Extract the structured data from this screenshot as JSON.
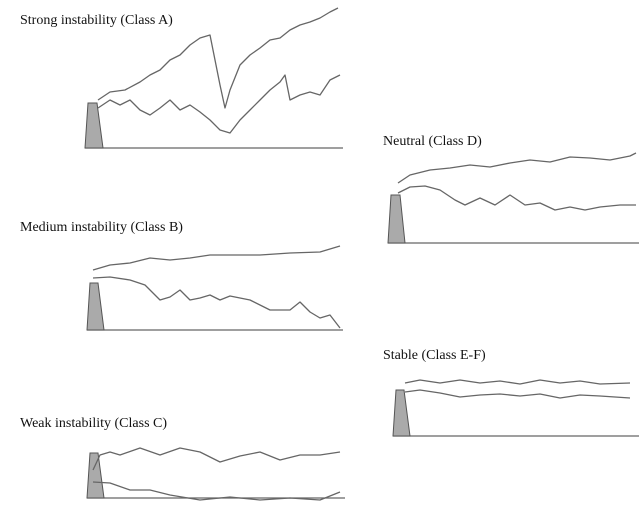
{
  "panels": [
    {
      "label": "Strong instability (Class A)"
    },
    {
      "label": "Neutral (Class D)"
    },
    {
      "label": "Medium instability (Class B)"
    },
    {
      "label": "Stable (Class E-F)"
    },
    {
      "label": "Weak instability (Class C)"
    }
  ]
}
